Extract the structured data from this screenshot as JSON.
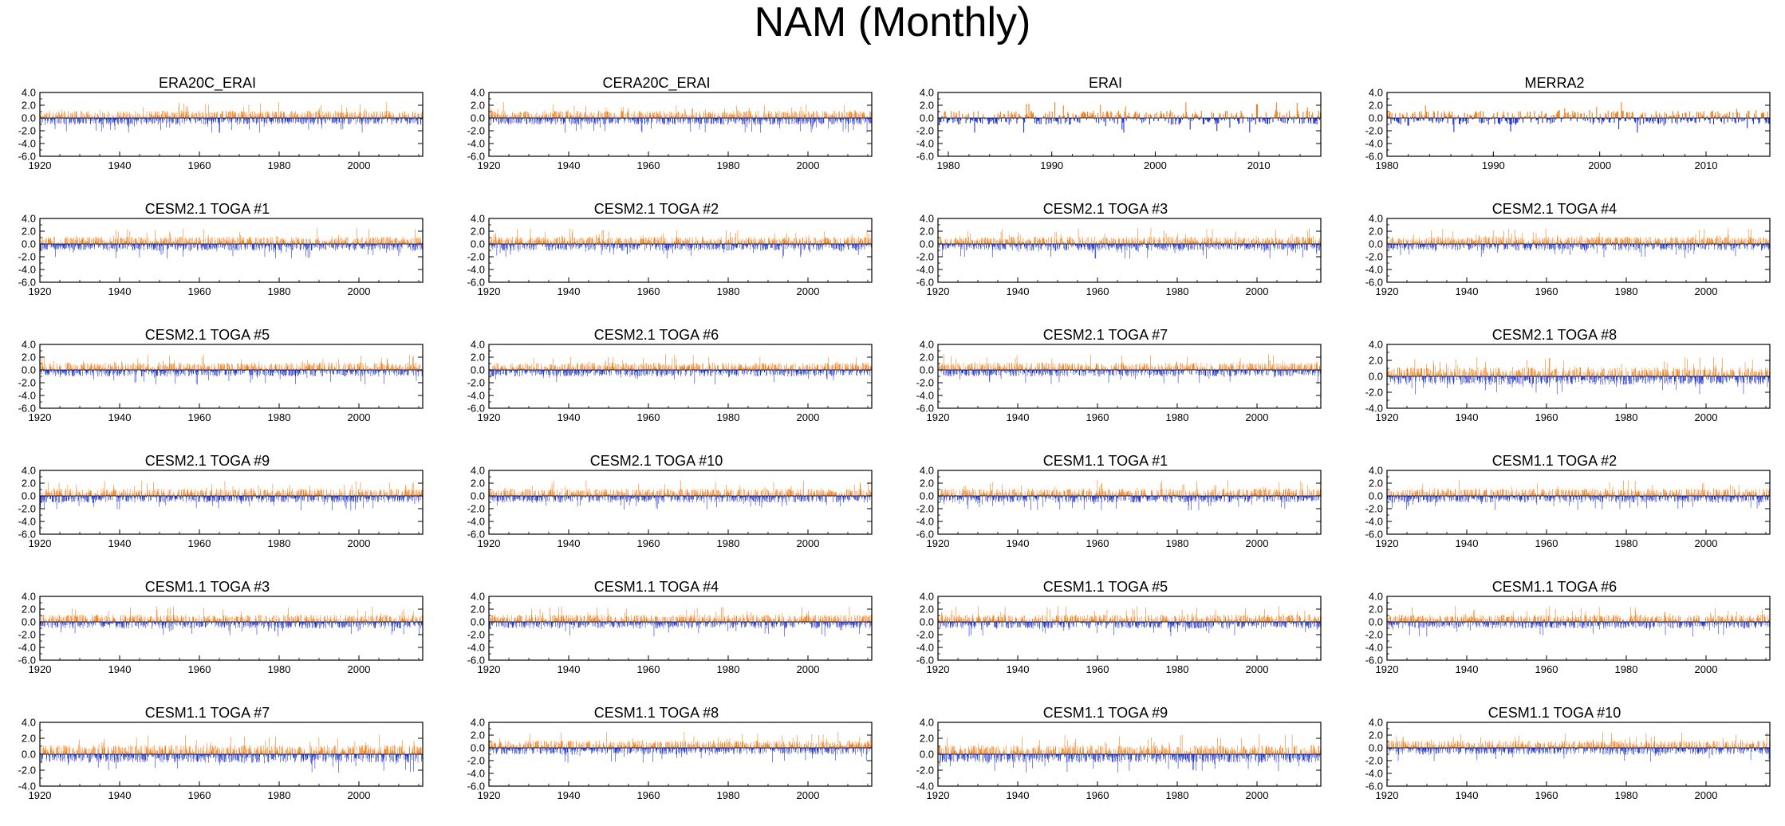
{
  "title": "NAM (Monthly)",
  "colors": {
    "positive": "#f07d1a",
    "negative": "#1f33d6",
    "axis": "#000000"
  },
  "chart_data": [
    {
      "type": "bar",
      "title": "ERA20C_ERAI",
      "x_range": [
        1920,
        2015
      ],
      "ylim": [
        -6.0,
        4.0
      ],
      "yticks": [
        "4.0",
        "2.0",
        "0.0",
        "-2.0",
        "-4.0",
        "-6.0"
      ],
      "xticks": [
        "1920",
        "1940",
        "1960",
        "1980",
        "2000"
      ],
      "seed": 11
    },
    {
      "type": "bar",
      "title": "CERA20C_ERAI",
      "x_range": [
        1920,
        2015
      ],
      "ylim": [
        -6.0,
        4.0
      ],
      "yticks": [
        "4.0",
        "2.0",
        "0.0",
        "-2.0",
        "-4.0",
        "-6.0"
      ],
      "xticks": [
        "1920",
        "1940",
        "1960",
        "1980",
        "2000"
      ],
      "seed": 23
    },
    {
      "type": "bar",
      "title": "ERAI",
      "x_range": [
        1979,
        2015
      ],
      "ylim": [
        -6.0,
        4.0
      ],
      "yticks": [
        "4.0",
        "2.0",
        "0.0",
        "-2.0",
        "-4.0",
        "-6.0"
      ],
      "xticks": [
        "1980",
        "1990",
        "2000",
        "2010"
      ],
      "seed": 37
    },
    {
      "type": "bar",
      "title": "MERRA2",
      "x_range": [
        1980,
        2015
      ],
      "ylim": [
        -6.0,
        4.0
      ],
      "yticks": [
        "4.0",
        "2.0",
        "0.0",
        "-2.0",
        "-4.0",
        "-6.0"
      ],
      "xticks": [
        "1980",
        "1990",
        "2000",
        "2010"
      ],
      "seed": 41
    },
    {
      "type": "bar",
      "title": "CESM2.1 TOGA #1",
      "x_range": [
        1920,
        2015
      ],
      "ylim": [
        -6.0,
        4.0
      ],
      "yticks": [
        "4.0",
        "2.0",
        "0.0",
        "-2.0",
        "-4.0",
        "-6.0"
      ],
      "xticks": [
        "1920",
        "1940",
        "1960",
        "1980",
        "2000"
      ],
      "seed": 53
    },
    {
      "type": "bar",
      "title": "CESM2.1 TOGA #2",
      "x_range": [
        1920,
        2015
      ],
      "ylim": [
        -6.0,
        4.0
      ],
      "yticks": [
        "4.0",
        "2.0",
        "0.0",
        "-2.0",
        "-4.0",
        "-6.0"
      ],
      "xticks": [
        "1920",
        "1940",
        "1960",
        "1980",
        "2000"
      ],
      "seed": 67
    },
    {
      "type": "bar",
      "title": "CESM2.1 TOGA #3",
      "x_range": [
        1920,
        2015
      ],
      "ylim": [
        -6.0,
        4.0
      ],
      "yticks": [
        "4.0",
        "2.0",
        "0.0",
        "-2.0",
        "-4.0",
        "-6.0"
      ],
      "xticks": [
        "1920",
        "1940",
        "1960",
        "1980",
        "2000"
      ],
      "seed": 71
    },
    {
      "type": "bar",
      "title": "CESM2.1 TOGA #4",
      "x_range": [
        1920,
        2015
      ],
      "ylim": [
        -6.0,
        4.0
      ],
      "yticks": [
        "4.0",
        "2.0",
        "0.0",
        "-2.0",
        "-4.0",
        "-6.0"
      ],
      "xticks": [
        "1920",
        "1940",
        "1960",
        "1980",
        "2000"
      ],
      "seed": 83
    },
    {
      "type": "bar",
      "title": "CESM2.1 TOGA #5",
      "x_range": [
        1920,
        2015
      ],
      "ylim": [
        -6.0,
        4.0
      ],
      "yticks": [
        "4.0",
        "2.0",
        "0.0",
        "-2.0",
        "-4.0",
        "-6.0"
      ],
      "xticks": [
        "1920",
        "1940",
        "1960",
        "1980",
        "2000"
      ],
      "seed": 97
    },
    {
      "type": "bar",
      "title": "CESM2.1 TOGA #6",
      "x_range": [
        1920,
        2015
      ],
      "ylim": [
        -6.0,
        4.0
      ],
      "yticks": [
        "4.0",
        "2.0",
        "0.0",
        "-2.0",
        "-4.0",
        "-6.0"
      ],
      "xticks": [
        "1920",
        "1940",
        "1960",
        "1980",
        "2000"
      ],
      "seed": 101
    },
    {
      "type": "bar",
      "title": "CESM2.1 TOGA #7",
      "x_range": [
        1920,
        2015
      ],
      "ylim": [
        -6.0,
        4.0
      ],
      "yticks": [
        "4.0",
        "2.0",
        "0.0",
        "-2.0",
        "-4.0",
        "-6.0"
      ],
      "xticks": [
        "1920",
        "1940",
        "1960",
        "1980",
        "2000"
      ],
      "seed": 113
    },
    {
      "type": "bar",
      "title": "CESM2.1 TOGA #8",
      "x_range": [
        1920,
        2015
      ],
      "ylim": [
        -4.0,
        4.0
      ],
      "yticks": [
        "4.0",
        "2.0",
        "0.0",
        "-2.0",
        "-4.0"
      ],
      "xticks": [
        "1920",
        "1940",
        "1960",
        "1980",
        "2000"
      ],
      "seed": 127
    },
    {
      "type": "bar",
      "title": "CESM2.1 TOGA #9",
      "x_range": [
        1920,
        2015
      ],
      "ylim": [
        -6.0,
        4.0
      ],
      "yticks": [
        "4.0",
        "2.0",
        "0.0",
        "-2.0",
        "-4.0",
        "-6.0"
      ],
      "xticks": [
        "1920",
        "1940",
        "1960",
        "1980",
        "2000"
      ],
      "seed": 131
    },
    {
      "type": "bar",
      "title": "CESM2.1 TOGA #10",
      "x_range": [
        1920,
        2015
      ],
      "ylim": [
        -6.0,
        4.0
      ],
      "yticks": [
        "4.0",
        "2.0",
        "0.0",
        "-2.0",
        "-4.0",
        "-6.0"
      ],
      "xticks": [
        "1920",
        "1940",
        "1960",
        "1980",
        "2000"
      ],
      "seed": 139
    },
    {
      "type": "bar",
      "title": "CESM1.1 TOGA #1",
      "x_range": [
        1920,
        2015
      ],
      "ylim": [
        -6.0,
        4.0
      ],
      "yticks": [
        "4.0",
        "2.0",
        "0.0",
        "-2.0",
        "-4.0",
        "-6.0"
      ],
      "xticks": [
        "1920",
        "1940",
        "1960",
        "1980",
        "2000"
      ],
      "seed": 149
    },
    {
      "type": "bar",
      "title": "CESM1.1 TOGA #2",
      "x_range": [
        1920,
        2015
      ],
      "ylim": [
        -6.0,
        4.0
      ],
      "yticks": [
        "4.0",
        "2.0",
        "0.0",
        "-2.0",
        "-4.0",
        "-6.0"
      ],
      "xticks": [
        "1920",
        "1940",
        "1960",
        "1980",
        "2000"
      ],
      "seed": 151
    },
    {
      "type": "bar",
      "title": "CESM1.1 TOGA #3",
      "x_range": [
        1920,
        2015
      ],
      "ylim": [
        -6.0,
        4.0
      ],
      "yticks": [
        "4.0",
        "2.0",
        "0.0",
        "-2.0",
        "-4.0",
        "-6.0"
      ],
      "xticks": [
        "1920",
        "1940",
        "1960",
        "1980",
        "2000"
      ],
      "seed": 163
    },
    {
      "type": "bar",
      "title": "CESM1.1 TOGA #4",
      "x_range": [
        1920,
        2015
      ],
      "ylim": [
        -6.0,
        4.0
      ],
      "yticks": [
        "4.0",
        "2.0",
        "0.0",
        "-2.0",
        "-4.0",
        "-6.0"
      ],
      "xticks": [
        "1920",
        "1940",
        "1960",
        "1980",
        "2000"
      ],
      "seed": 173
    },
    {
      "type": "bar",
      "title": "CESM1.1 TOGA #5",
      "x_range": [
        1920,
        2015
      ],
      "ylim": [
        -6.0,
        4.0
      ],
      "yticks": [
        "4.0",
        "2.0",
        "0.0",
        "-2.0",
        "-4.0",
        "-6.0"
      ],
      "xticks": [
        "1920",
        "1940",
        "1960",
        "1980",
        "2000"
      ],
      "seed": 179
    },
    {
      "type": "bar",
      "title": "CESM1.1 TOGA #6",
      "x_range": [
        1920,
        2015
      ],
      "ylim": [
        -6.0,
        4.0
      ],
      "yticks": [
        "4.0",
        "2.0",
        "0.0",
        "-2.0",
        "-4.0",
        "-6.0"
      ],
      "xticks": [
        "1920",
        "1940",
        "1960",
        "1980",
        "2000"
      ],
      "seed": 191
    },
    {
      "type": "bar",
      "title": "CESM1.1 TOGA #7",
      "x_range": [
        1920,
        2015
      ],
      "ylim": [
        -4.0,
        4.0
      ],
      "yticks": [
        "4.0",
        "2.0",
        "0.0",
        "-2.0",
        "-4.0"
      ],
      "xticks": [
        "1920",
        "1940",
        "1960",
        "1980",
        "2000"
      ],
      "seed": 193
    },
    {
      "type": "bar",
      "title": "CESM1.1 TOGA #8",
      "x_range": [
        1920,
        2015
      ],
      "ylim": [
        -6.0,
        4.0
      ],
      "yticks": [
        "4.0",
        "2.0",
        "0.0",
        "-2.0",
        "-4.0",
        "-6.0"
      ],
      "xticks": [
        "1920",
        "1940",
        "1960",
        "1980",
        "2000"
      ],
      "seed": 197
    },
    {
      "type": "bar",
      "title": "CESM1.1 TOGA #9",
      "x_range": [
        1920,
        2015
      ],
      "ylim": [
        -4.0,
        4.0
      ],
      "yticks": [
        "4.0",
        "2.0",
        "0.0",
        "-2.0",
        "-4.0"
      ],
      "xticks": [
        "1920",
        "1940",
        "1960",
        "1980",
        "2000"
      ],
      "seed": 199
    },
    {
      "type": "bar",
      "title": "CESM1.1 TOGA #10",
      "x_range": [
        1920,
        2015
      ],
      "ylim": [
        -6.0,
        4.0
      ],
      "yticks": [
        "4.0",
        "2.0",
        "0.0",
        "-2.0",
        "-4.0",
        "-6.0"
      ],
      "xticks": [
        "1920",
        "1940",
        "1960",
        "1980",
        "2000"
      ],
      "seed": 211
    }
  ]
}
